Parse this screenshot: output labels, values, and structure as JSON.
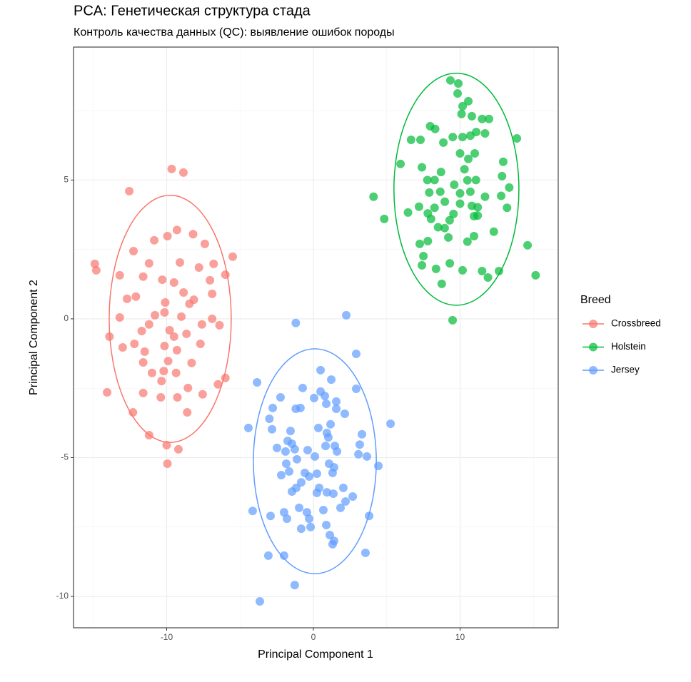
{
  "chart_data": {
    "type": "scatter",
    "title": "PCA: Генетическая структура стада",
    "subtitle": "Контроль качества данных (QC): выявление ошибок породы",
    "x_label": "Principal Component 1",
    "y_label": "Principal Component 2",
    "legend_title": "Breed",
    "legend_position": "right",
    "grid": true,
    "xlim": [
      -16.35,
      16.69
    ],
    "ylim": [
      -11.13,
      9.79
    ],
    "xticks": [
      -10,
      0,
      10
    ],
    "yticks": [
      -10,
      -5,
      0,
      5
    ],
    "x_minor_ticks": [
      -15,
      -5,
      5,
      15
    ],
    "y_minor_ticks": [
      -7.5,
      -2.5,
      2.5,
      7.5
    ],
    "series": [
      {
        "name": "Crossbreed",
        "color": "#F8766D",
        "ellipse": {
          "center": [
            -9.76,
            0
          ],
          "radii": [
            4.16,
            4.45
          ]
        },
        "x": [
          -9.66,
          -8.86,
          -12.55,
          -9.3,
          -8.2,
          -10.85,
          -9.95,
          -7.4,
          -12.26,
          -14.9,
          -14.8,
          -5.5,
          -11.2,
          -9.1,
          -7.8,
          -6.8,
          -13.2,
          -11.6,
          -10.3,
          -9.5,
          -6.0,
          -7.05,
          -8.85,
          -12.1,
          -12.7,
          -10.1,
          -8.15,
          -6.9,
          -8.45,
          -13.2,
          -10.8,
          -9.0,
          -6.9,
          -10.15,
          -11.2,
          -7.6,
          -6.4,
          -11.7,
          -9.8,
          -8.65,
          -13.9,
          -9.5,
          -7.7,
          -12.2,
          -13.0,
          -10.15,
          -11.5,
          -9.3,
          -9.9,
          -8.3,
          -11.6,
          -11.0,
          -10.2,
          -9.36,
          -6.0,
          -6.5,
          -10.35,
          -8.55,
          -14.06,
          -11.6,
          -10.4,
          -7.55,
          -9.27,
          -12.3,
          -8.6,
          -11.2,
          -10.0,
          -9.2,
          -9.95
        ],
        "values": [
          5.4,
          5.27,
          4.6,
          3.2,
          3.05,
          2.83,
          2.98,
          2.7,
          2.44,
          1.98,
          1.75,
          2.24,
          2.0,
          2.03,
          1.85,
          1.98,
          1.57,
          1.52,
          1.41,
          1.31,
          1.59,
          1.39,
          0.95,
          0.8,
          0.72,
          0.59,
          0.69,
          0.9,
          0.54,
          0.05,
          0.13,
          0.08,
          0.0,
          0.23,
          -0.2,
          -0.2,
          -0.23,
          -0.44,
          -0.41,
          -0.54,
          -0.64,
          -0.64,
          -0.9,
          -0.9,
          -1.03,
          -0.98,
          -1.18,
          -1.13,
          -1.52,
          -1.59,
          -1.57,
          -1.95,
          -1.88,
          -1.95,
          -2.13,
          -2.36,
          -2.24,
          -2.49,
          -2.65,
          -2.67,
          -2.83,
          -2.72,
          -2.83,
          -3.37,
          -3.37,
          -4.19,
          -4.55,
          -4.7,
          -5.22
        ]
      },
      {
        "name": "Holstein",
        "color": "#00BA38",
        "ellipse": {
          "center": [
            9.75,
            4.67
          ],
          "radii": [
            4.26,
            4.18
          ]
        },
        "x": [
          9.34,
          9.88,
          9.83,
          10.56,
          10.17,
          10.8,
          11.5,
          11.97,
          10.1,
          7.96,
          8.3,
          11.1,
          11.7,
          6.66,
          7.3,
          9.5,
          10.17,
          10.7,
          8.86,
          13.87,
          10.0,
          11.0,
          10.56,
          12.94,
          5.94,
          7.4,
          10.3,
          8.7,
          7.77,
          8.26,
          9.6,
          10.5,
          11.08,
          12.86,
          13.35,
          7.9,
          8.65,
          10.0,
          10.7,
          11.7,
          4.1,
          8.96,
          10.0,
          10.8,
          11.2,
          12.8,
          8.26,
          13.2,
          6.45,
          7.2,
          7.8,
          9.55,
          11.2,
          4.83,
          8.02,
          9.29,
          10.95,
          8.5,
          8.95,
          12.3,
          10.95,
          9.2,
          7.25,
          7.8,
          14.6,
          10.5,
          7.5,
          9.3,
          7.4,
          8.36,
          10.17,
          11.5,
          12.65,
          11.9,
          15.15,
          8.75,
          9.49
        ],
        "values": [
          8.59,
          8.48,
          8.12,
          7.84,
          7.66,
          7.3,
          7.2,
          7.2,
          7.38,
          6.94,
          6.84,
          6.73,
          6.68,
          6.45,
          6.45,
          6.55,
          6.55,
          6.6,
          6.35,
          6.5,
          5.96,
          5.96,
          5.76,
          5.66,
          5.58,
          5.46,
          5.39,
          5.29,
          5.0,
          5.0,
          4.83,
          4.99,
          5.0,
          5.14,
          4.73,
          4.55,
          4.58,
          4.52,
          4.58,
          4.4,
          4.4,
          4.22,
          4.15,
          4.07,
          4.02,
          4.43,
          4.0,
          4.0,
          3.83,
          4.04,
          3.8,
          3.78,
          3.72,
          3.6,
          3.6,
          3.55,
          3.7,
          3.3,
          3.27,
          3.14,
          2.98,
          2.93,
          2.7,
          2.8,
          2.65,
          2.78,
          2.26,
          2.0,
          1.93,
          1.8,
          1.75,
          1.72,
          1.72,
          1.49,
          1.57,
          1.26,
          -0.05
        ]
      },
      {
        "name": "Jersey",
        "color": "#619CFF",
        "ellipse": {
          "center": [
            0.1,
            -5.13
          ],
          "radii": [
            4.19,
            4.05
          ]
        },
        "x": [
          2.24,
          -1.2,
          2.92,
          0.49,
          1.22,
          -3.84,
          2.92,
          0.49,
          -0.73,
          0.78,
          -2.24,
          0.05,
          0.88,
          1.56,
          -2.77,
          -1.2,
          -0.88,
          1.56,
          2.14,
          -3.0,
          1.17,
          5.26,
          -4.43,
          -2.82,
          0.34,
          -1.56,
          0.92,
          1.02,
          3.31,
          -1.75,
          -1.46,
          -2.48,
          0.83,
          1.46,
          3.16,
          -1.9,
          -1.27,
          -0.39,
          1.61,
          3.65,
          3.07,
          0.1,
          -1.12,
          -1.85,
          1.07,
          1.41,
          4.43,
          -1.65,
          -0.58,
          0.24,
          1.31,
          -2.19,
          -0.29,
          -0.83,
          -1.17,
          0.39,
          2.04,
          -1.46,
          0.24,
          0.92,
          1.36,
          2.68,
          2.19,
          -4.14,
          -0.97,
          0.68,
          1.85,
          -2.0,
          -0.44,
          -2.92,
          3.8,
          -1.8,
          -0.29,
          0.88,
          -0.83,
          -0.19,
          1.12,
          1.41,
          1.31,
          3.55,
          -3.07,
          -2.0,
          -1.27,
          -3.65
        ],
        "values": [
          0.13,
          -0.15,
          -1.26,
          -1.85,
          -2.19,
          -2.29,
          -2.52,
          -2.62,
          -2.49,
          -2.78,
          -2.83,
          -2.85,
          -3.06,
          -2.98,
          -3.21,
          -3.24,
          -3.21,
          -3.24,
          -3.42,
          -3.6,
          -3.8,
          -3.78,
          -3.93,
          -3.98,
          -3.93,
          -4.04,
          -4.11,
          -4.27,
          -4.16,
          -4.4,
          -4.5,
          -4.65,
          -4.58,
          -4.58,
          -4.53,
          -4.78,
          -4.7,
          -4.73,
          -4.78,
          -4.96,
          -4.88,
          -4.96,
          -5.06,
          -5.22,
          -5.22,
          -5.35,
          -5.3,
          -5.5,
          -5.55,
          -5.58,
          -5.55,
          -5.63,
          -5.68,
          -5.89,
          -6.09,
          -6.09,
          -6.09,
          -6.22,
          -6.27,
          -6.25,
          -6.3,
          -6.4,
          -6.58,
          -6.92,
          -6.81,
          -6.89,
          -6.81,
          -6.97,
          -6.97,
          -7.1,
          -7.1,
          -7.2,
          -7.2,
          -7.43,
          -7.56,
          -7.5,
          -7.79,
          -8.0,
          -8.12,
          -8.43,
          -8.53,
          -8.53,
          -9.59,
          -10.18
        ]
      }
    ]
  }
}
